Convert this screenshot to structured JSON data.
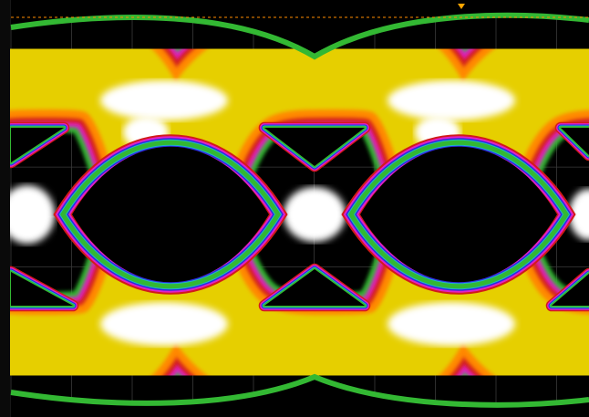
{
  "display": {
    "mode": "persistence-eye-diagram",
    "background": "#000000",
    "grid_color": "#3a3a3a",
    "marker_line_color": "#ff8c00",
    "trigger_marker_color": "#ffa500"
  },
  "color_scale": {
    "levels": [
      "green",
      "cyan",
      "blue",
      "magenta",
      "red",
      "orange",
      "yellow",
      "white"
    ],
    "hex": [
      "#33b833",
      "#1fb5c8",
      "#2a2ae0",
      "#e020c8",
      "#d21a1a",
      "#ff8800",
      "#e6cf00",
      "#ffffff"
    ]
  }
}
